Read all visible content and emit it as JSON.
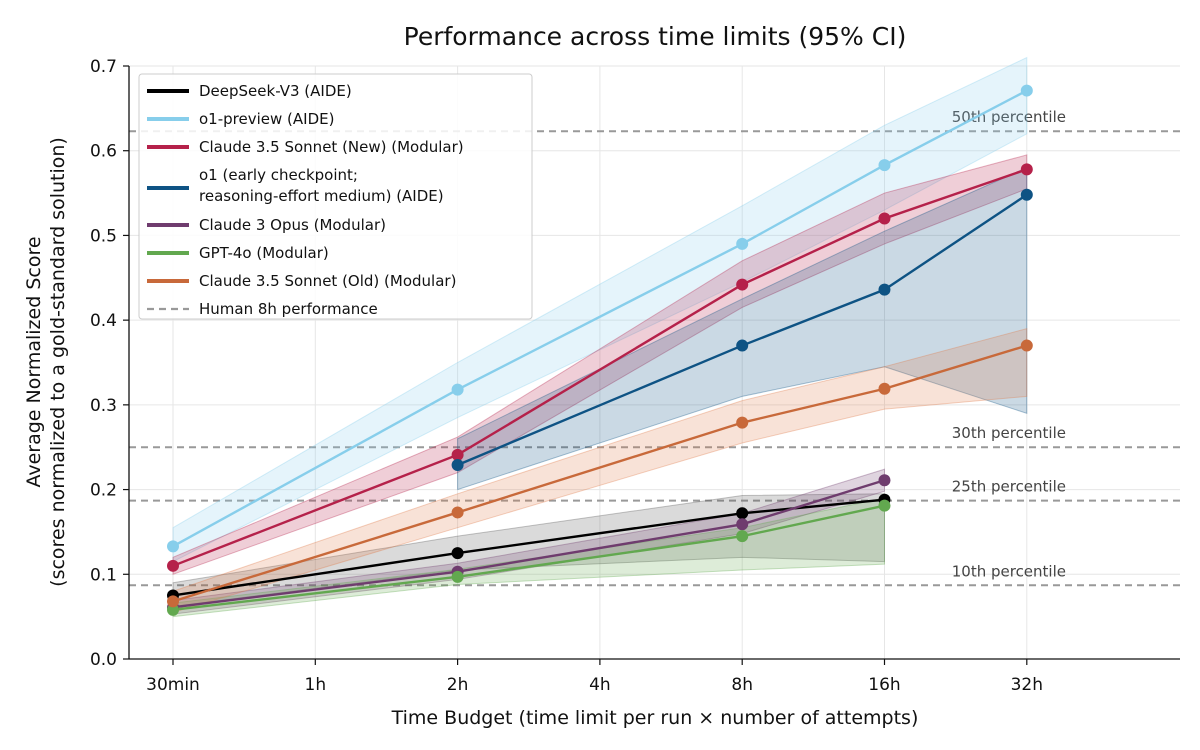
{
  "chart_data": {
    "type": "line",
    "title": "Performance across time limits (95% CI)",
    "xlabel": "Time Budget (time limit per run × number of attempts)",
    "ylabel_line1": "Average Normalized Score",
    "ylabel_line2": "(scores normalized to a gold-standard solution)",
    "x_scale": "log2",
    "x_ticks": [
      "30min",
      "1h",
      "2h",
      "4h",
      "8h",
      "16h",
      "32h"
    ],
    "y_ticks": [
      "0.0",
      "0.1",
      "0.2",
      "0.3",
      "0.4",
      "0.5",
      "0.6",
      "0.7"
    ],
    "ylim": [
      0,
      0.7
    ],
    "grid": true,
    "legend_position": "top-left",
    "series": [
      {
        "name": "DeepSeek-V3 (AIDE)",
        "color": "#000000",
        "band_color": "#555555",
        "x": [
          "30min",
          "2h",
          "8h",
          "16h"
        ],
        "values": [
          0.075,
          0.125,
          0.172,
          0.188
        ],
        "ci_low": [
          0.062,
          0.105,
          0.12,
          0.115
        ],
        "ci_high": [
          0.09,
          0.145,
          0.193,
          0.195
        ]
      },
      {
        "name": "o1-preview (AIDE)",
        "color": "#87CEEB",
        "band_color": "#87CEEB",
        "x": [
          "30min",
          "2h",
          "8h",
          "16h",
          "32h"
        ],
        "values": [
          0.133,
          0.318,
          0.49,
          0.583,
          0.671
        ],
        "ci_low": [
          0.115,
          0.285,
          0.445,
          0.53,
          0.62
        ],
        "ci_high": [
          0.155,
          0.35,
          0.535,
          0.63,
          0.71
        ]
      },
      {
        "name": "Claude 3.5 Sonnet (New) (Modular)",
        "color": "#B5214A",
        "band_color": "#B5214A",
        "x": [
          "30min",
          "2h",
          "8h",
          "16h",
          "32h"
        ],
        "values": [
          0.11,
          0.241,
          0.442,
          0.52,
          0.578
        ],
        "ci_low": [
          0.1,
          0.22,
          0.415,
          0.49,
          0.555
        ],
        "ci_high": [
          0.12,
          0.262,
          0.47,
          0.55,
          0.595
        ]
      },
      {
        "name": "o1 (early checkpoint;",
        "name_line2": "reasoning-effort medium) (AIDE)",
        "color": "#0E5384",
        "band_color": "#0E5384",
        "x": [
          "2h",
          "8h",
          "16h",
          "32h"
        ],
        "values": [
          0.229,
          0.37,
          0.436,
          0.548
        ],
        "ci_low": [
          0.2,
          0.31,
          0.345,
          0.29
        ],
        "ci_high": [
          0.26,
          0.425,
          0.505,
          0.58
        ]
      },
      {
        "name": "Claude 3 Opus (Modular)",
        "color": "#6F3C6E",
        "band_color": "#6F3C6E",
        "x": [
          "30min",
          "2h",
          "8h",
          "16h"
        ],
        "values": [
          0.061,
          0.103,
          0.159,
          0.211
        ],
        "ci_low": [
          0.053,
          0.094,
          0.148,
          0.198
        ],
        "ci_high": [
          0.069,
          0.113,
          0.172,
          0.224
        ]
      },
      {
        "name": "GPT-4o (Modular)",
        "color": "#62A84F",
        "band_color": "#62A84F",
        "x": [
          "30min",
          "2h",
          "8h",
          "16h"
        ],
        "values": [
          0.058,
          0.097,
          0.145,
          0.181
        ],
        "ci_low": [
          0.05,
          0.088,
          0.105,
          0.112
        ],
        "ci_high": [
          0.066,
          0.106,
          0.155,
          0.19
        ]
      },
      {
        "name": "Claude 3.5 Sonnet (Old) (Modular)",
        "color": "#C8693A",
        "band_color": "#E07B4A",
        "x": [
          "30min",
          "2h",
          "8h",
          "16h",
          "32h"
        ],
        "values": [
          0.068,
          0.173,
          0.279,
          0.319,
          0.37
        ],
        "ci_low": [
          0.055,
          0.155,
          0.255,
          0.295,
          0.31
        ],
        "ci_high": [
          0.08,
          0.195,
          0.305,
          0.345,
          0.39
        ]
      }
    ],
    "reference_lines": {
      "legend_name": "Human 8h performance",
      "color": "#999999",
      "lines": [
        {
          "label": "50th percentile",
          "value": 0.623
        },
        {
          "label": "30th percentile",
          "value": 0.25
        },
        {
          "label": "25th percentile",
          "value": 0.187
        },
        {
          "label": "10th percentile",
          "value": 0.087
        }
      ]
    }
  }
}
